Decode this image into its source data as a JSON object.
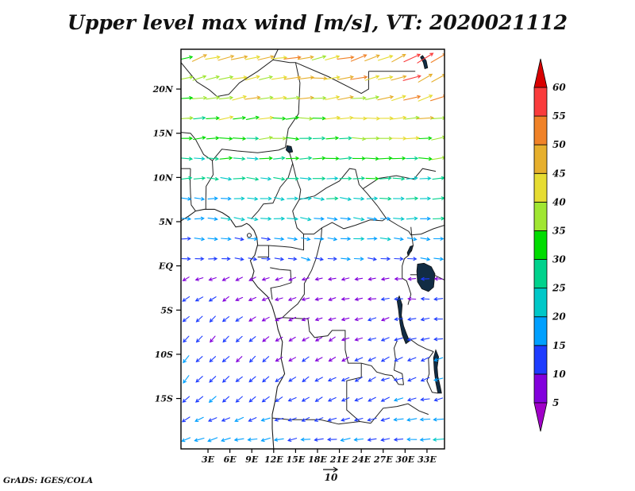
{
  "title": "Upper level max wind [m/s], VT: 2020021112",
  "attribution": "GrADS: IGES/COLA",
  "reference_vector": {
    "label": "10"
  },
  "axes": {
    "lat_tick_labels": [
      "20N",
      "15N",
      "10N",
      "5N",
      "EQ",
      "5S",
      "10S",
      "15S"
    ],
    "lat_tick_values": [
      20,
      15,
      10,
      5,
      0,
      -5,
      -10,
      -15
    ],
    "lon_tick_labels": [
      "3E",
      "6E",
      "9E",
      "12E",
      "15E",
      "18E",
      "21E",
      "24E",
      "27E",
      "30E",
      "33E"
    ],
    "lon_tick_values": [
      3,
      6,
      9,
      12,
      15,
      18,
      21,
      24,
      27,
      30,
      33
    ],
    "lon_range": [
      -0.7,
      35.4
    ],
    "lat_range": [
      -20.7,
      24.5
    ]
  },
  "colorbar": {
    "levels": [
      5,
      10,
      15,
      20,
      25,
      30,
      35,
      40,
      45,
      50,
      55,
      60
    ],
    "colors": [
      "#a000c8",
      "#8200dc",
      "#1e3cff",
      "#00a0ff",
      "#00c8c8",
      "#00d28c",
      "#00dc00",
      "#a0e632",
      "#e6dc32",
      "#e6af2d",
      "#f08228",
      "#fa3c3c",
      "#d80000"
    ]
  },
  "chart_data": {
    "type": "vector_field",
    "variable": "Upper level max wind",
    "units": "m/s",
    "valid_time": "2020021112",
    "reference_speed": 10,
    "legend_position": "right",
    "grid": {
      "lon_start": 0.0,
      "lon_step": 1.82,
      "cols": 20,
      "lat_start": 23.5,
      "lat_step": 2.27,
      "rows": 20
    },
    "bands_note": "pts = [lon_deg, direction_deg_ccw_from_east, speed_ms]",
    "bands": [
      {
        "lat": 23.6,
        "pts": [
          [
            0,
            20,
            40
          ],
          [
            9,
            12,
            44
          ],
          [
            18,
            8,
            46
          ],
          [
            27,
            18,
            52
          ],
          [
            35,
            34,
            58
          ]
        ]
      },
      {
        "lat": 21.3,
        "pts": [
          [
            0,
            16,
            38
          ],
          [
            9,
            10,
            42
          ],
          [
            18,
            6,
            44
          ],
          [
            27,
            13,
            48
          ],
          [
            35,
            26,
            54
          ]
        ]
      },
      {
        "lat": 19.0,
        "pts": [
          [
            0,
            12,
            35
          ],
          [
            9,
            7,
            39
          ],
          [
            18,
            4,
            41
          ],
          [
            27,
            9,
            44
          ],
          [
            35,
            18,
            50
          ]
        ]
      },
      {
        "lat": 16.6,
        "pts": [
          [
            0,
            8,
            32
          ],
          [
            9,
            4,
            35
          ],
          [
            18,
            2,
            37
          ],
          [
            27,
            5,
            40
          ],
          [
            35,
            11,
            44
          ]
        ]
      },
      {
        "lat": 14.3,
        "pts": [
          [
            0,
            5,
            29
          ],
          [
            9,
            2,
            31
          ],
          [
            18,
            0,
            33
          ],
          [
            27,
            2,
            35
          ],
          [
            35,
            6,
            39
          ]
        ]
      },
      {
        "lat": 12.0,
        "pts": [
          [
            0,
            2,
            26
          ],
          [
            9,
            0,
            28
          ],
          [
            18,
            -2,
            29
          ],
          [
            27,
            0,
            31
          ],
          [
            35,
            3,
            33
          ]
        ]
      },
      {
        "lat": 9.6,
        "pts": [
          [
            0,
            0,
            23
          ],
          [
            9,
            -3,
            24
          ],
          [
            18,
            -4,
            26
          ],
          [
            27,
            -2,
            27
          ],
          [
            35,
            0,
            29
          ]
        ]
      },
      {
        "lat": 7.3,
        "pts": [
          [
            0,
            -2,
            20
          ],
          [
            9,
            -4,
            21
          ],
          [
            18,
            -5,
            23
          ],
          [
            27,
            -4,
            24
          ],
          [
            35,
            -2,
            25
          ]
        ]
      },
      {
        "lat": 5.0,
        "pts": [
          [
            0,
            -3,
            18
          ],
          [
            9,
            -5,
            19
          ],
          [
            18,
            -6,
            20
          ],
          [
            27,
            -5,
            21
          ],
          [
            35,
            -3,
            22
          ]
        ]
      },
      {
        "lat": 2.6,
        "pts": [
          [
            0,
            -4,
            16
          ],
          [
            9,
            -6,
            16
          ],
          [
            18,
            -8,
            17
          ],
          [
            27,
            -6,
            18
          ],
          [
            35,
            -4,
            19
          ]
        ]
      },
      {
        "lat": 0.9,
        "pts": [
          [
            0,
            -5,
            14
          ],
          [
            9,
            -7,
            14
          ],
          [
            18,
            -9,
            14
          ],
          [
            27,
            -7,
            15
          ],
          [
            35,
            -5,
            15
          ]
        ]
      },
      {
        "lat": -0.4,
        "pts": [
          [
            0,
            -6,
            12
          ],
          [
            18,
            -9,
            12
          ],
          [
            35,
            -6,
            13
          ]
        ]
      },
      {
        "lat": -1.2,
        "pts": [
          [
            0,
            206,
            8
          ],
          [
            18,
            192,
            7
          ],
          [
            35,
            176,
            9
          ]
        ]
      },
      {
        "lat": -3.0,
        "pts": [
          [
            0,
            212,
            10
          ],
          [
            9,
            205,
            9
          ],
          [
            18,
            196,
            8
          ],
          [
            27,
            186,
            9
          ],
          [
            35,
            178,
            11
          ]
        ]
      },
      {
        "lat": -5.3,
        "pts": [
          [
            0,
            220,
            11
          ],
          [
            9,
            212,
            9
          ],
          [
            18,
            202,
            7
          ],
          [
            27,
            192,
            10
          ],
          [
            35,
            184,
            12
          ]
        ]
      },
      {
        "lat": -7.6,
        "pts": [
          [
            0,
            226,
            12
          ],
          [
            9,
            218,
            10
          ],
          [
            18,
            208,
            8
          ],
          [
            27,
            198,
            11
          ],
          [
            35,
            190,
            13
          ]
        ]
      },
      {
        "lat": -10.0,
        "pts": [
          [
            0,
            230,
            13
          ],
          [
            9,
            223,
            11
          ],
          [
            18,
            213,
            9
          ],
          [
            27,
            203,
            12
          ],
          [
            35,
            196,
            14
          ]
        ]
      },
      {
        "lat": -12.3,
        "pts": [
          [
            0,
            227,
            14
          ],
          [
            9,
            221,
            12
          ],
          [
            18,
            211,
            10
          ],
          [
            27,
            201,
            13
          ],
          [
            35,
            194,
            15
          ]
        ]
      },
      {
        "lat": -14.6,
        "pts": [
          [
            0,
            220,
            15
          ],
          [
            9,
            214,
            13
          ],
          [
            18,
            208,
            11
          ],
          [
            27,
            200,
            13
          ],
          [
            35,
            193,
            15
          ]
        ]
      },
      {
        "lat": -17.0,
        "pts": [
          [
            0,
            210,
            16
          ],
          [
            9,
            205,
            14
          ],
          [
            18,
            200,
            12
          ],
          [
            27,
            195,
            14
          ],
          [
            35,
            190,
            17
          ]
        ]
      },
      {
        "lat": -19.8,
        "pts": [
          [
            0,
            196,
            18
          ],
          [
            9,
            192,
            16
          ],
          [
            18,
            188,
            15
          ],
          [
            27,
            184,
            16
          ],
          [
            35,
            181,
            19
          ]
        ]
      }
    ]
  }
}
